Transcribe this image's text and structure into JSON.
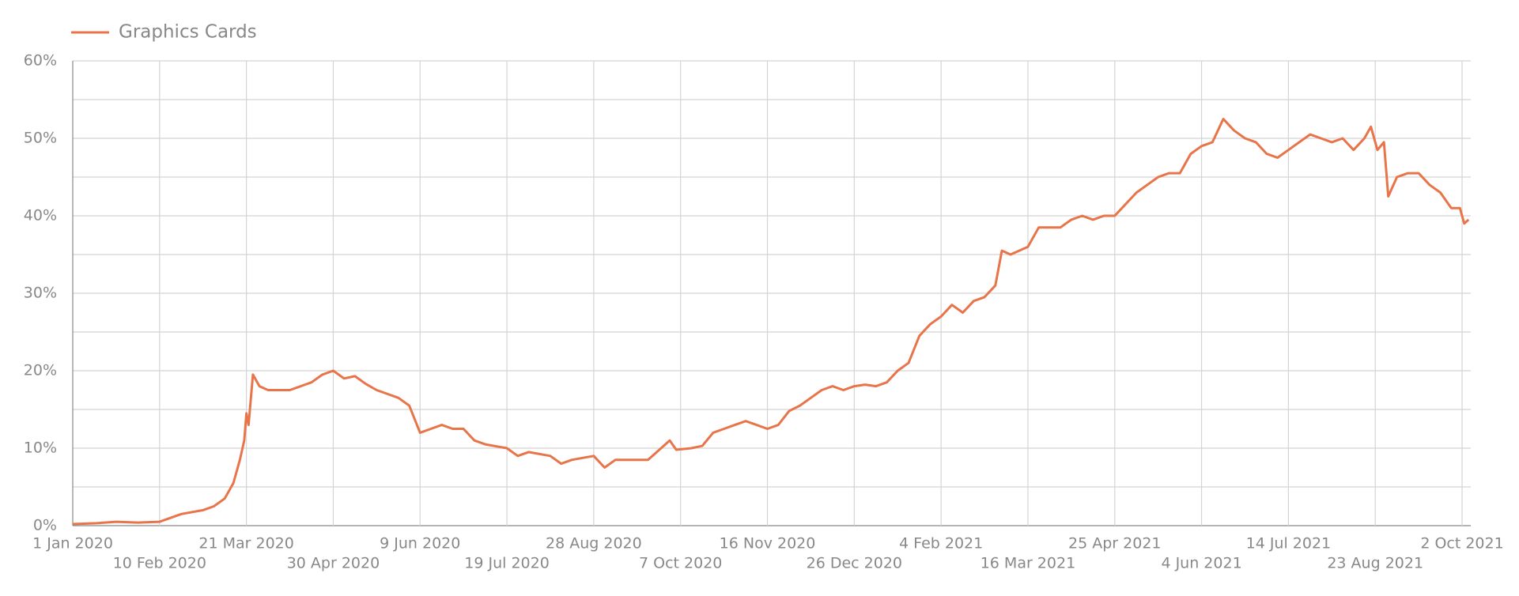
{
  "chart_data": {
    "type": "line",
    "x": [
      "2020-01-01",
      "2020-01-11",
      "2020-01-21",
      "2020-01-31",
      "2020-02-10",
      "2020-02-20",
      "2020-03-01",
      "2020-03-06",
      "2020-03-11",
      "2020-03-15",
      "2020-03-18",
      "2020-03-20",
      "2020-03-21",
      "2020-03-22",
      "2020-03-24",
      "2020-03-27",
      "2020-03-31",
      "2020-04-10",
      "2020-04-20",
      "2020-04-25",
      "2020-04-30",
      "2020-05-05",
      "2020-05-10",
      "2020-05-15",
      "2020-05-20",
      "2020-05-30",
      "2020-06-04",
      "2020-06-09",
      "2020-06-14",
      "2020-06-19",
      "2020-06-24",
      "2020-06-29",
      "2020-07-04",
      "2020-07-09",
      "2020-07-19",
      "2020-07-24",
      "2020-07-29",
      "2020-08-08",
      "2020-08-13",
      "2020-08-18",
      "2020-08-28",
      "2020-09-02",
      "2020-09-07",
      "2020-09-17",
      "2020-09-22",
      "2020-10-02",
      "2020-10-05",
      "2020-10-12",
      "2020-10-17",
      "2020-10-22",
      "2020-10-27",
      "2020-11-01",
      "2020-11-06",
      "2020-11-11",
      "2020-11-16",
      "2020-11-21",
      "2020-11-26",
      "2020-12-01",
      "2020-12-06",
      "2020-12-11",
      "2020-12-16",
      "2020-12-21",
      "2020-12-26",
      "2020-12-31",
      "2021-01-05",
      "2021-01-10",
      "2021-01-15",
      "2021-01-20",
      "2021-01-25",
      "2021-01-30",
      "2021-02-04",
      "2021-02-09",
      "2021-02-14",
      "2021-02-19",
      "2021-02-24",
      "2021-03-01",
      "2021-03-04",
      "2021-03-08",
      "2021-03-16",
      "2021-03-21",
      "2021-03-26",
      "2021-03-31",
      "2021-04-05",
      "2021-04-10",
      "2021-04-15",
      "2021-04-20",
      "2021-04-25",
      "2021-04-30",
      "2021-05-05",
      "2021-05-10",
      "2021-05-15",
      "2021-05-20",
      "2021-05-25",
      "2021-05-30",
      "2021-06-04",
      "2021-06-09",
      "2021-06-14",
      "2021-06-19",
      "2021-06-24",
      "2021-06-29",
      "2021-07-04",
      "2021-07-09",
      "2021-07-14",
      "2021-07-19",
      "2021-07-24",
      "2021-07-29",
      "2021-08-03",
      "2021-08-08",
      "2021-08-13",
      "2021-08-18",
      "2021-08-21",
      "2021-08-24",
      "2021-08-27",
      "2021-08-29",
      "2021-09-02",
      "2021-09-07",
      "2021-09-12",
      "2021-09-17",
      "2021-09-22",
      "2021-09-27",
      "2021-10-01",
      "2021-10-03",
      "2021-10-05"
    ],
    "series": [
      {
        "name": "Graphics Cards",
        "color": "#e8744a",
        "values": [
          0.2,
          0.3,
          0.5,
          0.4,
          0.5,
          1.5,
          2.0,
          2.5,
          3.5,
          5.5,
          8.5,
          11,
          14.5,
          13,
          19.5,
          18,
          17.5,
          17.5,
          18.5,
          19.5,
          20,
          19,
          19.3,
          18.3,
          17.5,
          16.5,
          15.5,
          12,
          12.5,
          13,
          12.5,
          12.5,
          11,
          10.5,
          10,
          9,
          9.5,
          9,
          8,
          8.5,
          9,
          7.5,
          8.5,
          8.5,
          8.5,
          11,
          9.8,
          10,
          10.3,
          12,
          12.5,
          13,
          13.5,
          13,
          12.5,
          13,
          14.8,
          15.5,
          16.5,
          17.5,
          18,
          17.5,
          18,
          18.2,
          18,
          18.5,
          20,
          21,
          24.5,
          26,
          27,
          28.5,
          27.5,
          29,
          29.5,
          31,
          35.5,
          35,
          36,
          38.5,
          38.5,
          38.5,
          39.5,
          40,
          39.5,
          40,
          40,
          41.5,
          43,
          44,
          45,
          45.5,
          45.5,
          48,
          49,
          49.5,
          52.5,
          51,
          50,
          49.5,
          48,
          47.5,
          48.5,
          49.5,
          50.5,
          50,
          49.5,
          50,
          48.5,
          50,
          51.5,
          48.5,
          49.5,
          42.5,
          45,
          45.5,
          45.5,
          44,
          43,
          41,
          41,
          39,
          39.5
        ]
      }
    ],
    "xlim": [
      "2020-01-01",
      "2021-10-06"
    ],
    "xticks": [
      {
        "value": "2020-01-01",
        "label": "1 Jan 2020"
      },
      {
        "value": "2020-02-10",
        "label": "10 Feb 2020"
      },
      {
        "value": "2020-03-21",
        "label": "21 Mar 2020"
      },
      {
        "value": "2020-04-30",
        "label": "30 Apr 2020"
      },
      {
        "value": "2020-06-09",
        "label": "9 Jun 2020"
      },
      {
        "value": "2020-07-19",
        "label": "19 Jul 2020"
      },
      {
        "value": "2020-08-28",
        "label": "28 Aug 2020"
      },
      {
        "value": "2020-10-07",
        "label": "7 Oct 2020"
      },
      {
        "value": "2020-11-16",
        "label": "16 Nov 2020"
      },
      {
        "value": "2020-12-26",
        "label": "26 Dec 2020"
      },
      {
        "value": "2021-02-04",
        "label": "4 Feb 2021"
      },
      {
        "value": "2021-03-16",
        "label": "16 Mar 2021"
      },
      {
        "value": "2021-04-25",
        "label": "25 Apr 2021"
      },
      {
        "value": "2021-06-04",
        "label": "4 Jun 2021"
      },
      {
        "value": "2021-07-14",
        "label": "14 Jul 2021"
      },
      {
        "value": "2021-08-23",
        "label": "23 Aug 2021"
      },
      {
        "value": "2021-10-02",
        "label": "2 Oct 2021"
      }
    ],
    "ylim": [
      0,
      60
    ],
    "yticks": [
      {
        "value": 0,
        "label": "0%"
      },
      {
        "value": 10,
        "label": "10%"
      },
      {
        "value": 20,
        "label": "20%"
      },
      {
        "value": 30,
        "label": "30%"
      },
      {
        "value": 40,
        "label": "40%"
      },
      {
        "value": 50,
        "label": "50%"
      },
      {
        "value": 60,
        "label": "60%"
      }
    ],
    "minor_yticks": [
      5,
      15,
      25,
      35,
      45,
      55
    ],
    "grid": true,
    "legend": "top-left"
  }
}
